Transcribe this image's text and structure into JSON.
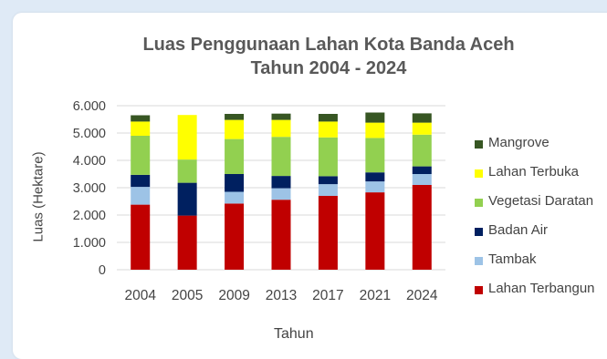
{
  "chart_data": {
    "type": "bar",
    "stacked": true,
    "title": "Luas Penggunaan Lahan Kota Banda Aceh",
    "subtitle": "Tahun 2004 - 2024",
    "xlabel": "Tahun",
    "ylabel": "Luas (Hektare)",
    "ylim": [
      0,
      6000
    ],
    "y_ticks": [
      "0",
      "1.000",
      "2.000",
      "3.000",
      "4.000",
      "5.000",
      "6.000"
    ],
    "grid": true,
    "legend": "right",
    "categories": [
      "2004",
      "2005",
      "2009",
      "2013",
      "2017",
      "2021",
      "2024"
    ],
    "series": [
      {
        "name": "Lahan Terbangun",
        "color": "#c00000",
        "values": [
          2380,
          1980,
          2420,
          2560,
          2700,
          2830,
          3100
        ]
      },
      {
        "name": "Tambak",
        "color": "#9dc3e6",
        "values": [
          650,
          0,
          430,
          420,
          430,
          400,
          400
        ]
      },
      {
        "name": "Badan Air",
        "color": "#002060",
        "values": [
          440,
          1200,
          650,
          450,
          290,
          330,
          280
        ]
      },
      {
        "name": "Vegetasi Daratan",
        "color": "#92d050",
        "values": [
          1430,
          850,
          1280,
          1430,
          1420,
          1260,
          1160
        ]
      },
      {
        "name": "Lahan Terbuka",
        "color": "#ffff00",
        "values": [
          520,
          1630,
          700,
          620,
          580,
          560,
          440
        ]
      },
      {
        "name": "Mangrove",
        "color": "#375623",
        "values": [
          230,
          0,
          220,
          230,
          280,
          370,
          340
        ]
      }
    ]
  }
}
